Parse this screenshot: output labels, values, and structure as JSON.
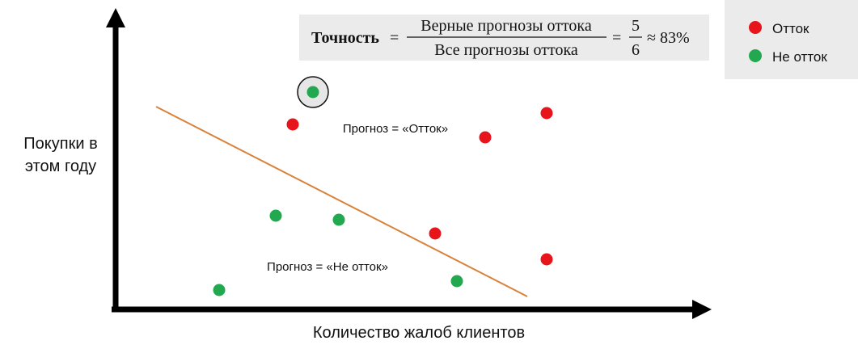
{
  "formula": {
    "label": "Точность",
    "operator": "=",
    "numerator": "Верные прогнозы оттока",
    "denominator": "Все прогнозы оттока",
    "fraction_numerator": "5",
    "fraction_denominator": "6",
    "result": "≈ 83%"
  },
  "legend": {
    "items": [
      {
        "label": "Отток"
      },
      {
        "label": "Не отток"
      }
    ]
  },
  "regions": {
    "churn": "Прогноз = «Отток»",
    "no_churn": "Прогноз = «Не отток»"
  },
  "axes": {
    "y_label": [
      "Покупки в",
      "этом году"
    ],
    "x_label": "Количество жалоб клиентов"
  }
}
